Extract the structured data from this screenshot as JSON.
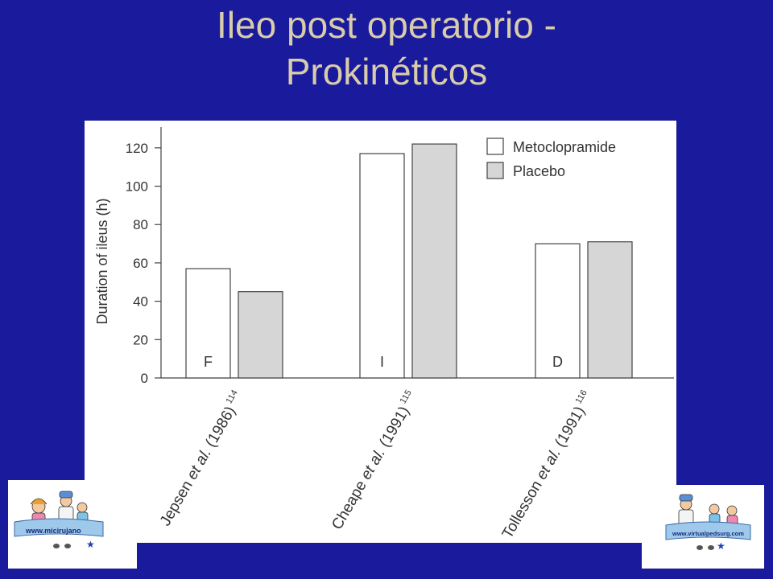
{
  "slide": {
    "title_line1": "Ileo post operatorio -",
    "title_line2": "Prokinéticos",
    "background_color": "#1a1a9c",
    "title_color": "#d8ccaa"
  },
  "logos": {
    "left_url": "www.micirujano",
    "right_url": "www.virtualpedsurg.com"
  },
  "chart_data": {
    "type": "bar",
    "categories": [
      "Jepsen et al. (1986)",
      "Cheape et al. (1991)",
      "Tollesson et al. (1991)"
    ],
    "category_parts": [
      {
        "author": "Jepsen",
        "etal": "et al.",
        "year": "(1986)",
        "ref": "114"
      },
      {
        "author": "Cheape",
        "etal": "et al.",
        "year": "(1991)",
        "ref": "115"
      },
      {
        "author": "Tollesson",
        "etal": "et al.",
        "year": "(1991)",
        "ref": "116"
      }
    ],
    "group_letters": [
      "F",
      "I",
      "D"
    ],
    "series": [
      {
        "name": "Metoclopramide",
        "values": [
          57,
          117,
          70
        ],
        "fill": "#ffffff"
      },
      {
        "name": "Placebo",
        "values": [
          45,
          122,
          71
        ],
        "fill": "#d6d6d6"
      }
    ],
    "ylabel": "Duration of ileus (h)",
    "ylim": [
      0,
      130
    ],
    "yticks": [
      0,
      20,
      40,
      60,
      80,
      100,
      120
    ],
    "legend_position": "top-right",
    "grid": false
  }
}
